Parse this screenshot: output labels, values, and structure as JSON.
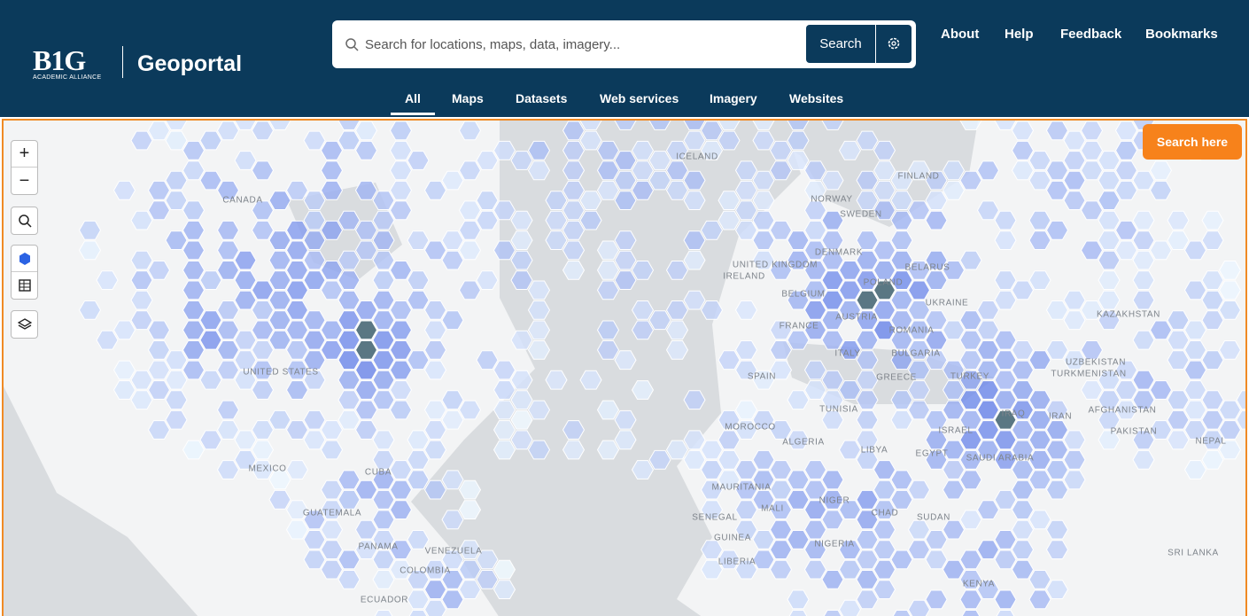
{
  "header": {
    "logo_mark": "B1G",
    "logo_sub": "ACADEMIC ALLIANCE",
    "title": "Geoportal",
    "search_placeholder": "Search for locations, maps, data, imagery...",
    "search_button": "Search",
    "nav": [
      "About",
      "Help",
      "Feedback",
      "Bookmarks"
    ]
  },
  "tabs": {
    "items": [
      "All",
      "Maps",
      "Datasets",
      "Web services",
      "Imagery",
      "Websites"
    ],
    "active": "All"
  },
  "map": {
    "search_here": "Search here",
    "zoom_in": "+",
    "zoom_out": "−",
    "labels": [
      "CANADA",
      "ICELAND",
      "NORWAY",
      "SWEDEN",
      "FINLAND",
      "UNITED KINGDOM",
      "IRELAND",
      "DENMARK",
      "BELARUS",
      "POLAND",
      "BELGIUM",
      "UKRAINE",
      "KAZAKHSTAN",
      "FRANCE",
      "AUSTRIA",
      "ROMANIA",
      "BULGARIA",
      "ITALY",
      "SPAIN",
      "GREECE",
      "TURKEY",
      "UZBEKISTAN",
      "TURKMENISTAN",
      "UNITED STATES",
      "TUNISIA",
      "IRAN",
      "AFGHANISTAN",
      "MOROCCO",
      "ALGERIA",
      "LIBYA",
      "ISRAEL",
      "EGYPT",
      "IRAQ",
      "PAKISTAN",
      "SAUDI ARABIA",
      "NEPAL",
      "MEXICO",
      "CUBA",
      "MAURITANIA",
      "MALI",
      "NIGER",
      "CHAD",
      "SUDAN",
      "GUATEMALA",
      "SENEGAL",
      "GUINEA",
      "NIGERIA",
      "VENEZUELA",
      "PANAMA",
      "COLOMBIA",
      "LIBERIA",
      "KENYA",
      "SRI LANKA",
      "ECUADOR"
    ]
  }
}
